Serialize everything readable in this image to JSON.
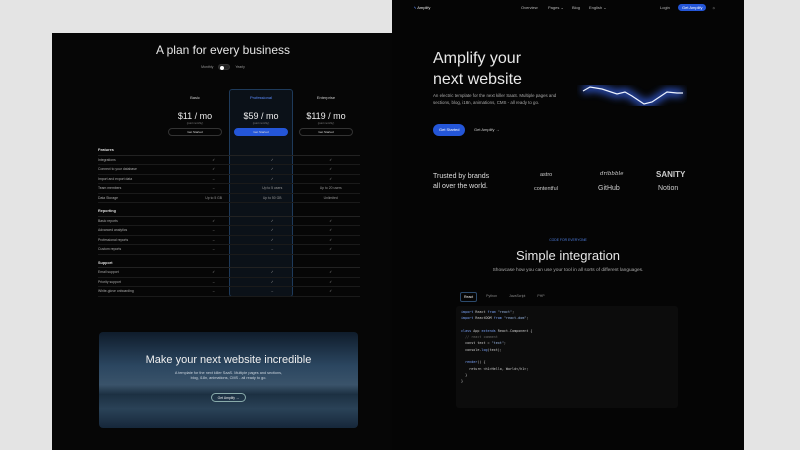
{
  "pricing": {
    "title": "A plan for every business",
    "toggle": {
      "left": "Monthly",
      "right": "Yearly"
    },
    "plans": [
      {
        "name": "Basic",
        "price": "$11 / mo",
        "note": "(paid monthly)",
        "button": "Get Started"
      },
      {
        "name": "Professional",
        "price": "$59 / mo",
        "note": "(paid monthly)",
        "button": "Get Started"
      },
      {
        "name": "Enterprise",
        "price": "$119 / mo",
        "note": "(paid monthly)",
        "button": "Get Started"
      }
    ],
    "sections": [
      {
        "title": "Features",
        "rows": [
          {
            "label": "Integrations",
            "values": [
              "✓",
              "✓",
              "✓"
            ]
          },
          {
            "label": "Connect to your database",
            "values": [
              "✓",
              "✓",
              "✓"
            ]
          },
          {
            "label": "Import and export data",
            "values": [
              "–",
              "✓",
              "✓"
            ]
          },
          {
            "label": "Team members",
            "values": [
              "–",
              "Up to 5 users",
              "Up to 20 users"
            ]
          },
          {
            "label": "Data Storage",
            "values": [
              "Up to 5 GB",
              "Up to 50 GB",
              "Unlimited"
            ]
          }
        ]
      },
      {
        "title": "Reporting",
        "rows": [
          {
            "label": "Basic reports",
            "values": [
              "✓",
              "✓",
              "✓"
            ]
          },
          {
            "label": "Advanced analytics",
            "values": [
              "–",
              "✓",
              "✓"
            ]
          },
          {
            "label": "Professional reports",
            "values": [
              "–",
              "✓",
              "✓"
            ]
          },
          {
            "label": "Custom reports",
            "values": [
              "–",
              "–",
              "✓"
            ]
          }
        ]
      },
      {
        "title": "Support",
        "rows": [
          {
            "label": "Email support",
            "values": [
              "✓",
              "✓",
              "✓"
            ]
          },
          {
            "label": "Priority support",
            "values": [
              "–",
              "✓",
              "✓"
            ]
          },
          {
            "label": "White-glove onboarding",
            "values": [
              "–",
              "–",
              "✓"
            ]
          }
        ]
      }
    ]
  },
  "banner": {
    "title": "Make your next website incredible",
    "text": "A template for the next killer SaaS. Multiple pages and sections, blog, i18n, animations, CMS - all ready to go.",
    "button": "Get Amplify →"
  },
  "nav": {
    "brand": "Amplify",
    "items": [
      "Overview",
      "Pages ⌄",
      "Blog",
      "English ⌄"
    ],
    "login": "Login",
    "cta": "Get Amplify"
  },
  "hero": {
    "title_line1": "Amplify your",
    "title_line2": "next website",
    "description": "An electric template for the next killer SaaS. Multiple pages and sections, blog, i18n, animations, CMS - all ready to go.",
    "primary": "Get Started",
    "secondary": "Get Amplify →"
  },
  "brands": {
    "title_line1": "Trusted by brands",
    "title_line2": "all over the world.",
    "logos": [
      "astro",
      "dribbble",
      "SANITY",
      "contentful",
      "GitHub",
      "Notion"
    ]
  },
  "integration": {
    "eyebrow": "CODE FOR EVERYONE",
    "title": "Simple integration",
    "subtitle": "Showcase how you can use your tool in all sorts of different languages.",
    "tabs": [
      "React",
      "Python",
      "JavaScript",
      "PHP"
    ],
    "active_tab": "React"
  },
  "colors": {
    "accent": "#2456d8",
    "background": "#050505",
    "page": "#e4e4e4"
  }
}
